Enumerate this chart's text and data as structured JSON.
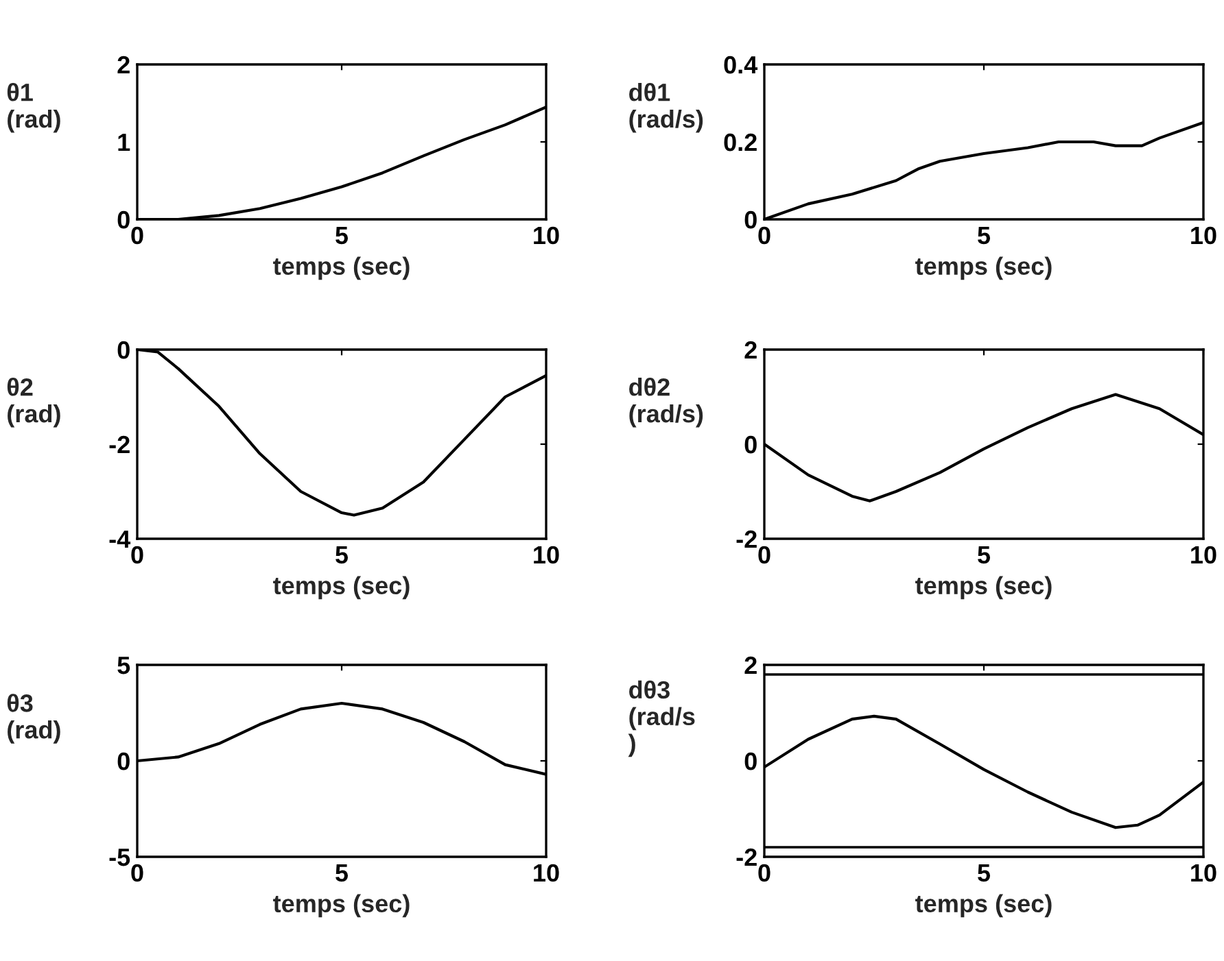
{
  "chart_data": [
    {
      "type": "line",
      "xlabel": "temps (sec)",
      "ylabel": "θ1\n(rad)",
      "xlim": [
        0,
        10
      ],
      "xticks": [
        0,
        5,
        10
      ],
      "ylim": [
        0,
        2
      ],
      "yticks": [
        0,
        1,
        2
      ],
      "grid": false,
      "series": [
        {
          "color": "#000000",
          "x": [
            0,
            1,
            2,
            3,
            4,
            5,
            6,
            7,
            8,
            9,
            10
          ],
          "values": [
            0,
            0,
            0.05,
            0.14,
            0.27,
            0.42,
            0.6,
            0.82,
            1.03,
            1.22,
            1.45
          ]
        }
      ]
    },
    {
      "type": "line",
      "xlabel": "temps (sec)",
      "ylabel": "dθ1\n(rad/s)",
      "xlim": [
        0,
        10
      ],
      "xticks": [
        0,
        5,
        10
      ],
      "ylim": [
        0,
        0.4
      ],
      "yticks": [
        0,
        0.2,
        0.4
      ],
      "grid": false,
      "series": [
        {
          "color": "#000000",
          "x": [
            0,
            1,
            2,
            3,
            3.5,
            4,
            5,
            6,
            6.7,
            7.5,
            8,
            8.6,
            9,
            10
          ],
          "values": [
            0,
            0.04,
            0.065,
            0.1,
            0.13,
            0.15,
            0.17,
            0.185,
            0.2,
            0.2,
            0.19,
            0.19,
            0.21,
            0.25
          ]
        }
      ]
    },
    {
      "type": "line",
      "xlabel": "temps (sec)",
      "ylabel": "θ2\n(rad)",
      "xlim": [
        0,
        10
      ],
      "xticks": [
        0,
        5,
        10
      ],
      "ylim": [
        -4,
        0
      ],
      "yticks": [
        -4,
        -2,
        0
      ],
      "grid": false,
      "series": [
        {
          "color": "#000000",
          "x": [
            0,
            0.5,
            1,
            2,
            3,
            4,
            5,
            5.3,
            6,
            7,
            8,
            9,
            10
          ],
          "values": [
            0,
            -0.05,
            -0.4,
            -1.2,
            -2.2,
            -3.0,
            -3.45,
            -3.5,
            -3.35,
            -2.8,
            -1.9,
            -1.0,
            -0.55
          ]
        }
      ]
    },
    {
      "type": "line",
      "xlabel": "temps (sec)",
      "ylabel": "dθ2\n(rad/s)",
      "xlim": [
        0,
        10
      ],
      "xticks": [
        0,
        5,
        10
      ],
      "ylim": [
        -2,
        2
      ],
      "yticks": [
        -2,
        0,
        2
      ],
      "grid": false,
      "series": [
        {
          "color": "#000000",
          "x": [
            0,
            1,
            2,
            2.4,
            3,
            4,
            5,
            6,
            7,
            8,
            9,
            10
          ],
          "values": [
            0,
            -0.65,
            -1.1,
            -1.2,
            -1.0,
            -0.6,
            -0.1,
            0.35,
            0.75,
            1.05,
            0.75,
            0.2
          ]
        }
      ]
    },
    {
      "type": "line",
      "xlabel": "temps (sec)",
      "ylabel": "θ3\n(rad)",
      "xlim": [
        0,
        10
      ],
      "xticks": [
        0,
        5,
        10
      ],
      "ylim": [
        -5,
        5
      ],
      "yticks": [
        -5,
        0,
        5
      ],
      "grid": false,
      "series": [
        {
          "color": "#000000",
          "x": [
            0,
            1,
            2,
            3,
            4,
            5,
            6,
            7,
            8,
            9,
            10
          ],
          "values": [
            0,
            0.2,
            0.9,
            1.9,
            2.7,
            3.0,
            2.7,
            2.0,
            1.0,
            -0.2,
            -0.7
          ]
        }
      ]
    },
    {
      "type": "line",
      "xlabel": "temps (sec)",
      "ylabel": "dθ3\n(rad/s\n)",
      "xlim": [
        0,
        10
      ],
      "xticks": [
        0,
        5,
        10
      ],
      "ylim": [
        -2,
        2
      ],
      "yticks": [
        -2,
        0,
        2
      ],
      "grid": false,
      "ref_lines": [
        {
          "axis": "y",
          "value": 1.8,
          "color": "#000000"
        },
        {
          "axis": "y",
          "value": -1.8,
          "color": "#000000"
        }
      ],
      "series": [
        {
          "color": "#000000",
          "x": [
            0,
            1,
            2,
            2.5,
            3,
            4,
            5,
            6,
            7,
            8,
            8.5,
            9,
            10
          ],
          "values": [
            -0.13,
            0.45,
            0.87,
            0.93,
            0.87,
            0.35,
            -0.18,
            -0.65,
            -1.07,
            -1.39,
            -1.34,
            -1.13,
            -0.44
          ]
        }
      ]
    }
  ]
}
